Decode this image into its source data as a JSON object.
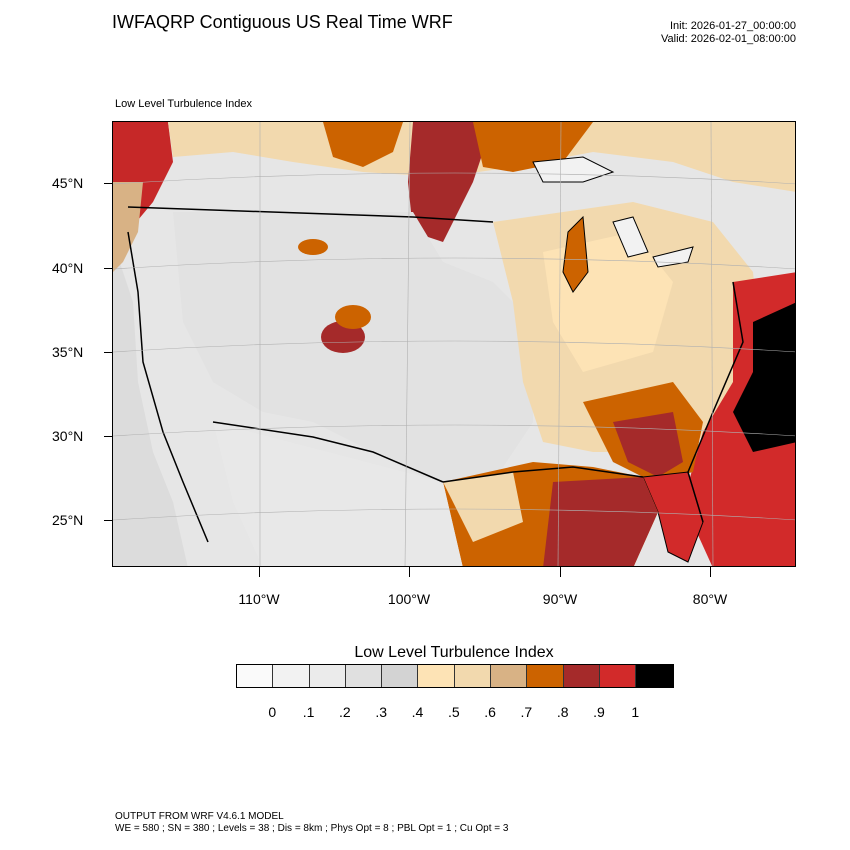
{
  "header": {
    "title": "IWFAQRP Contiguous US Real Time WRF",
    "init": "Init: 2026-01-27_00:00:00",
    "valid": "Valid: 2026-02-01_08:00:00"
  },
  "map": {
    "subtitle": "Low Level Turbulence Index",
    "lat_labels": [
      "45°N",
      "40°N",
      "35°N",
      "30°N",
      "25°N"
    ],
    "lon_labels": [
      "110°W",
      "100°W",
      "90°W",
      "80°W"
    ]
  },
  "legend": {
    "title": "Low Level Turbulence Index",
    "levels": [
      "0",
      ".1",
      ".2",
      ".3",
      ".4",
      ".5",
      ".6",
      ".7",
      ".8",
      ".9",
      "1"
    ],
    "colors": [
      "#fafafa",
      "#f2f2f2",
      "#ebebeb",
      "#e0e0e0",
      "#d3d3d3",
      "#fde3b5",
      "#f2d9ae",
      "#d8b285",
      "#cc6300",
      "#a52a2a",
      "#d22a2a",
      "#000000"
    ]
  },
  "footer": {
    "model": "OUTPUT FROM WRF V4.6.1 MODEL",
    "params": "WE = 580 ; SN = 380 ; Levels = 38 ; Dis = 8km ; Phys Opt = 8 ; PBL Opt = 1 ; Cu Opt = 3"
  }
}
